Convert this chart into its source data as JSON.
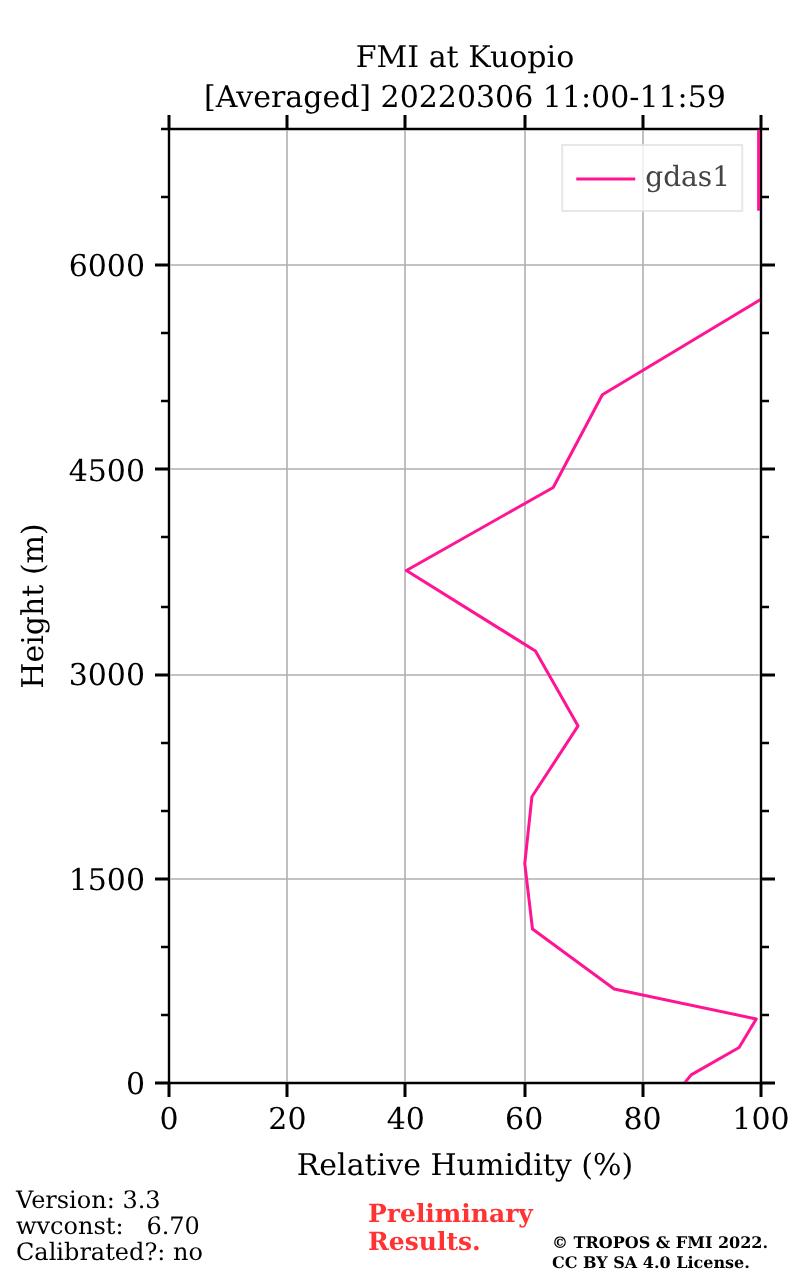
{
  "chart_data": {
    "type": "line",
    "title": "FMI at Kuopio",
    "subtitle": "[Averaged] 20220306 11:00-11:59",
    "xlabel": "Relative Humidity (%)",
    "ylabel": "Height (m)",
    "xlim": [
      0,
      100
    ],
    "xticks": [
      0,
      20,
      40,
      60,
      80,
      100
    ],
    "ylim": [
      0,
      7000
    ],
    "yticks": [
      0,
      {
        "value": 500,
        "label": null
      },
      {
        "value": 1000,
        "label": null
      },
      1500,
      {
        "value": 2000,
        "label": null
      },
      {
        "value": 2500,
        "label": null
      },
      3000,
      {
        "value": 3500,
        "label": null
      },
      {
        "value": 4000,
        "label": null
      },
      4500,
      {
        "value": 5000,
        "label": null
      },
      {
        "value": 5500,
        "label": null
      },
      6000,
      {
        "value": 6500,
        "label": null
      },
      {
        "value": 7000,
        "label": null
      }
    ],
    "grid": true,
    "legend": "top right",
    "series": [
      {
        "name": "gdas1",
        "color": "#ff1493",
        "x": [
          87.1,
          88.2,
          96.3,
          99.2,
          75.2,
          61.4,
          60.1,
          61.3,
          69.1,
          61.9,
          40.1,
          64.9,
          73.2,
          100,
          null,
          99.6,
          99.6
        ],
        "values": [
          0,
          60,
          260,
          470,
          690,
          1130,
          1610,
          2100,
          2620,
          3170,
          3760,
          4370,
          5050,
          5750,
          null,
          6400,
          7000
        ]
      }
    ],
    "annotations": [
      "Version: 3.3\nwvconst:   6.70\nCalibrated?: no",
      "Preliminary\nResults.",
      "© TROPOS & FMI 2022.\nCC BY SA 4.0 License."
    ]
  }
}
